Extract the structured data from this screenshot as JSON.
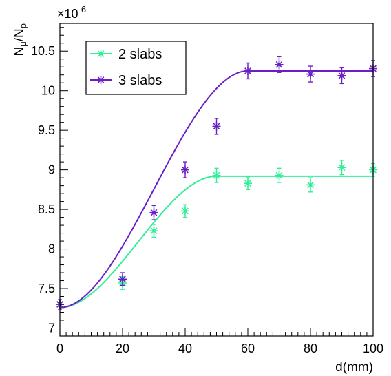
{
  "chart_data": {
    "type": "scatter",
    "xlabel": "d(mm)",
    "ylabel_main": "N",
    "ylabel_main_sub": "μ",
    "ylabel_den": "N",
    "ylabel_den_sub": "p",
    "y_multiplier_prefix": "×10",
    "y_multiplier_exp": "-6",
    "xlim": [
      0,
      100
    ],
    "ylim": [
      6.9,
      10.85
    ],
    "x_ticks": [
      0,
      20,
      40,
      60,
      80,
      100
    ],
    "x_tick_labels": [
      "0",
      "20",
      "40",
      "60",
      "80",
      "100"
    ],
    "y_ticks": [
      7,
      7.5,
      8,
      8.5,
      9,
      9.5,
      10,
      10.5
    ],
    "y_tick_labels": [
      "7",
      "7.5",
      "8",
      "8.5",
      "9",
      "9.5",
      "10",
      "10.5"
    ],
    "grid": false,
    "legend_position": "top-left",
    "series": [
      {
        "name": "2 slabs",
        "color": "#33ee99",
        "marker": "star",
        "x": [
          0,
          20,
          30,
          40,
          50,
          60,
          70,
          80,
          90,
          100
        ],
        "y": [
          7.3,
          7.57,
          8.23,
          8.48,
          8.93,
          8.83,
          8.93,
          8.81,
          9.03,
          9.0
        ],
        "yerr": [
          0.06,
          0.08,
          0.08,
          0.08,
          0.09,
          0.08,
          0.09,
          0.09,
          0.09,
          0.08
        ],
        "fit_plateau_x": 50,
        "fit_plateau_y": 8.92
      },
      {
        "name": "3 slabs",
        "color": "#6a1fc4",
        "marker": "star",
        "x": [
          0,
          20,
          30,
          40,
          50,
          60,
          70,
          80,
          90,
          100
        ],
        "y": [
          7.3,
          7.62,
          8.46,
          9.0,
          9.55,
          10.25,
          10.33,
          10.21,
          10.19,
          10.28
        ],
        "yerr": [
          0.06,
          0.08,
          0.09,
          0.1,
          0.1,
          0.1,
          0.1,
          0.1,
          0.1,
          0.1
        ],
        "fit_plateau_x": 60,
        "fit_plateau_y": 10.25
      }
    ],
    "fit_start_y": 7.26
  }
}
